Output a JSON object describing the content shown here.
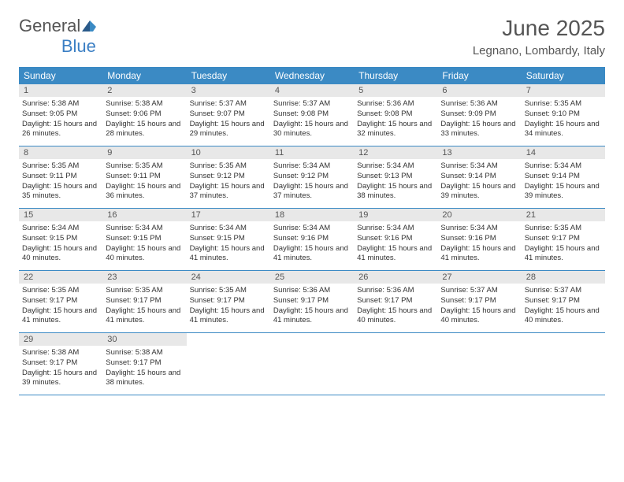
{
  "logo": {
    "text_general": "General",
    "text_blue": "Blue"
  },
  "header": {
    "month_title": "June 2025",
    "location": "Legnano, Lombardy, Italy"
  },
  "colors": {
    "header_bg": "#3b8ac4",
    "day_label_bg": "#e8e8e8",
    "border": "#3b8ac4",
    "text_main": "#555555",
    "text_body": "#333333"
  },
  "weekdays": [
    "Sunday",
    "Monday",
    "Tuesday",
    "Wednesday",
    "Thursday",
    "Friday",
    "Saturday"
  ],
  "weeks": [
    [
      {
        "day": "1",
        "sunrise": "Sunrise: 5:38 AM",
        "sunset": "Sunset: 9:05 PM",
        "daylight": "Daylight: 15 hours and 26 minutes."
      },
      {
        "day": "2",
        "sunrise": "Sunrise: 5:38 AM",
        "sunset": "Sunset: 9:06 PM",
        "daylight": "Daylight: 15 hours and 28 minutes."
      },
      {
        "day": "3",
        "sunrise": "Sunrise: 5:37 AM",
        "sunset": "Sunset: 9:07 PM",
        "daylight": "Daylight: 15 hours and 29 minutes."
      },
      {
        "day": "4",
        "sunrise": "Sunrise: 5:37 AM",
        "sunset": "Sunset: 9:08 PM",
        "daylight": "Daylight: 15 hours and 30 minutes."
      },
      {
        "day": "5",
        "sunrise": "Sunrise: 5:36 AM",
        "sunset": "Sunset: 9:08 PM",
        "daylight": "Daylight: 15 hours and 32 minutes."
      },
      {
        "day": "6",
        "sunrise": "Sunrise: 5:36 AM",
        "sunset": "Sunset: 9:09 PM",
        "daylight": "Daylight: 15 hours and 33 minutes."
      },
      {
        "day": "7",
        "sunrise": "Sunrise: 5:35 AM",
        "sunset": "Sunset: 9:10 PM",
        "daylight": "Daylight: 15 hours and 34 minutes."
      }
    ],
    [
      {
        "day": "8",
        "sunrise": "Sunrise: 5:35 AM",
        "sunset": "Sunset: 9:11 PM",
        "daylight": "Daylight: 15 hours and 35 minutes."
      },
      {
        "day": "9",
        "sunrise": "Sunrise: 5:35 AM",
        "sunset": "Sunset: 9:11 PM",
        "daylight": "Daylight: 15 hours and 36 minutes."
      },
      {
        "day": "10",
        "sunrise": "Sunrise: 5:35 AM",
        "sunset": "Sunset: 9:12 PM",
        "daylight": "Daylight: 15 hours and 37 minutes."
      },
      {
        "day": "11",
        "sunrise": "Sunrise: 5:34 AM",
        "sunset": "Sunset: 9:12 PM",
        "daylight": "Daylight: 15 hours and 37 minutes."
      },
      {
        "day": "12",
        "sunrise": "Sunrise: 5:34 AM",
        "sunset": "Sunset: 9:13 PM",
        "daylight": "Daylight: 15 hours and 38 minutes."
      },
      {
        "day": "13",
        "sunrise": "Sunrise: 5:34 AM",
        "sunset": "Sunset: 9:14 PM",
        "daylight": "Daylight: 15 hours and 39 minutes."
      },
      {
        "day": "14",
        "sunrise": "Sunrise: 5:34 AM",
        "sunset": "Sunset: 9:14 PM",
        "daylight": "Daylight: 15 hours and 39 minutes."
      }
    ],
    [
      {
        "day": "15",
        "sunrise": "Sunrise: 5:34 AM",
        "sunset": "Sunset: 9:15 PM",
        "daylight": "Daylight: 15 hours and 40 minutes."
      },
      {
        "day": "16",
        "sunrise": "Sunrise: 5:34 AM",
        "sunset": "Sunset: 9:15 PM",
        "daylight": "Daylight: 15 hours and 40 minutes."
      },
      {
        "day": "17",
        "sunrise": "Sunrise: 5:34 AM",
        "sunset": "Sunset: 9:15 PM",
        "daylight": "Daylight: 15 hours and 41 minutes."
      },
      {
        "day": "18",
        "sunrise": "Sunrise: 5:34 AM",
        "sunset": "Sunset: 9:16 PM",
        "daylight": "Daylight: 15 hours and 41 minutes."
      },
      {
        "day": "19",
        "sunrise": "Sunrise: 5:34 AM",
        "sunset": "Sunset: 9:16 PM",
        "daylight": "Daylight: 15 hours and 41 minutes."
      },
      {
        "day": "20",
        "sunrise": "Sunrise: 5:34 AM",
        "sunset": "Sunset: 9:16 PM",
        "daylight": "Daylight: 15 hours and 41 minutes."
      },
      {
        "day": "21",
        "sunrise": "Sunrise: 5:35 AM",
        "sunset": "Sunset: 9:17 PM",
        "daylight": "Daylight: 15 hours and 41 minutes."
      }
    ],
    [
      {
        "day": "22",
        "sunrise": "Sunrise: 5:35 AM",
        "sunset": "Sunset: 9:17 PM",
        "daylight": "Daylight: 15 hours and 41 minutes."
      },
      {
        "day": "23",
        "sunrise": "Sunrise: 5:35 AM",
        "sunset": "Sunset: 9:17 PM",
        "daylight": "Daylight: 15 hours and 41 minutes."
      },
      {
        "day": "24",
        "sunrise": "Sunrise: 5:35 AM",
        "sunset": "Sunset: 9:17 PM",
        "daylight": "Daylight: 15 hours and 41 minutes."
      },
      {
        "day": "25",
        "sunrise": "Sunrise: 5:36 AM",
        "sunset": "Sunset: 9:17 PM",
        "daylight": "Daylight: 15 hours and 41 minutes."
      },
      {
        "day": "26",
        "sunrise": "Sunrise: 5:36 AM",
        "sunset": "Sunset: 9:17 PM",
        "daylight": "Daylight: 15 hours and 40 minutes."
      },
      {
        "day": "27",
        "sunrise": "Sunrise: 5:37 AM",
        "sunset": "Sunset: 9:17 PM",
        "daylight": "Daylight: 15 hours and 40 minutes."
      },
      {
        "day": "28",
        "sunrise": "Sunrise: 5:37 AM",
        "sunset": "Sunset: 9:17 PM",
        "daylight": "Daylight: 15 hours and 40 minutes."
      }
    ],
    [
      {
        "day": "29",
        "sunrise": "Sunrise: 5:38 AM",
        "sunset": "Sunset: 9:17 PM",
        "daylight": "Daylight: 15 hours and 39 minutes."
      },
      {
        "day": "30",
        "sunrise": "Sunrise: 5:38 AM",
        "sunset": "Sunset: 9:17 PM",
        "daylight": "Daylight: 15 hours and 38 minutes."
      },
      null,
      null,
      null,
      null,
      null
    ]
  ]
}
